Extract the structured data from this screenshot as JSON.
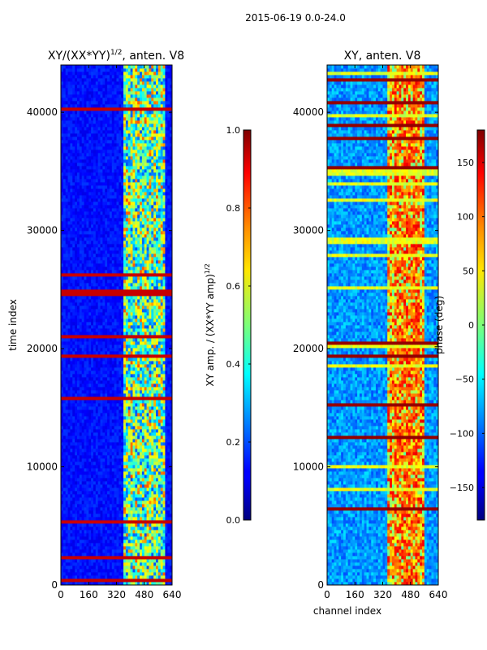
{
  "suptitle": "2015-06-19 0.0-24.0",
  "chart_data": [
    {
      "type": "heatmap",
      "title_main": "XY/(XX*YY)",
      "title_sup": "1/2",
      "title_tail": ", anten. V8",
      "xlabel": "",
      "ylabel": "time index",
      "xlim": [
        0,
        640
      ],
      "ylim": [
        0,
        44000
      ],
      "xticks": [
        "0",
        "160",
        "320",
        "480",
        "640"
      ],
      "xtick_values": [
        0,
        160,
        320,
        480,
        640
      ],
      "yticks": [
        "0",
        "10000",
        "20000",
        "30000",
        "40000"
      ],
      "ytick_values": [
        0,
        10000,
        20000,
        30000,
        40000
      ],
      "colorbar": {
        "label_main": "XY amp. / (XX*YY amp)",
        "label_sup": "1/2",
        "range": [
          0.0,
          1.0
        ],
        "ticks": [
          "0.0",
          "0.2",
          "0.4",
          "0.6",
          "0.8",
          "1.0"
        ],
        "tick_values": [
          0.0,
          0.2,
          0.4,
          0.6,
          0.8,
          1.0
        ]
      },
      "colormap": "jet"
    },
    {
      "type": "heatmap",
      "title_main": "XY, anten. V8",
      "xlabel": "channel index",
      "ylabel": "",
      "xlim": [
        0,
        640
      ],
      "ylim": [
        0,
        44000
      ],
      "xticks": [
        "0",
        "160",
        "320",
        "480",
        "640"
      ],
      "xtick_values": [
        0,
        160,
        320,
        480,
        640
      ],
      "yticks": [
        "0",
        "10000",
        "20000",
        "30000",
        "40000"
      ],
      "ytick_values": [
        0,
        10000,
        20000,
        30000,
        40000
      ],
      "colorbar": {
        "label_main": "phase (deg)",
        "range": [
          -180,
          180
        ],
        "ticks": [
          "−150",
          "−100",
          "−50",
          "0",
          "50",
          "100",
          "150"
        ],
        "tick_values": [
          -150,
          -100,
          -50,
          0,
          50,
          100,
          150
        ]
      },
      "colormap": "jet"
    }
  ]
}
